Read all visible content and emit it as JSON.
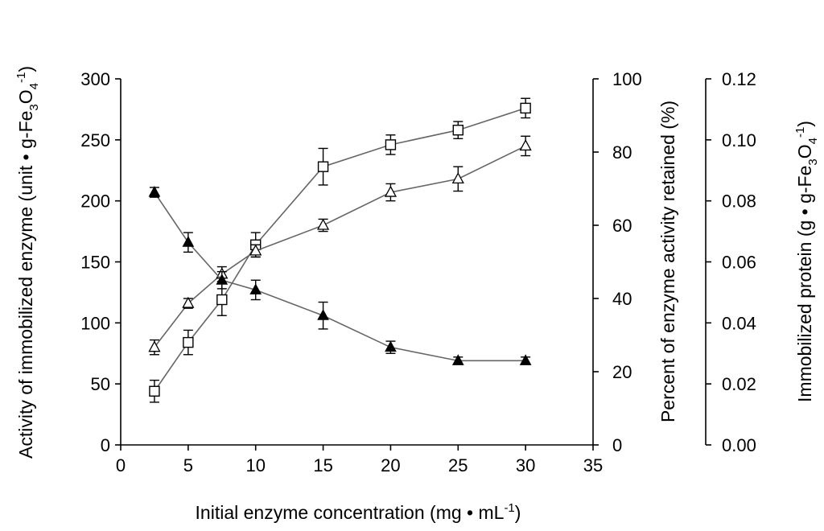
{
  "chart_data": {
    "type": "line",
    "x_axis": {
      "label": "Initial enzyme concentration (mg • mL",
      "label_sup": "-1",
      "label_end": ")",
      "range": [
        0,
        35
      ],
      "ticks": [
        "0",
        "5",
        "10",
        "15",
        "20",
        "25",
        "30",
        "35"
      ]
    },
    "y_axis_left": {
      "label": "Activity of immobilized enzyme (unit • g-Fe",
      "label_sub": "3",
      "label_mid": "O",
      "label_sub2": "4",
      "label_sup": "-1",
      "label_end": ")",
      "range": [
        0,
        300
      ],
      "ticks": [
        "0",
        "50",
        "100",
        "150",
        "200",
        "250",
        "300"
      ]
    },
    "y_axis_right1": {
      "label": "Percent of enzyme activity retained (%)",
      "range": [
        0,
        100
      ],
      "ticks": [
        "0",
        "20",
        "40",
        "60",
        "80",
        "100"
      ]
    },
    "y_axis_right2": {
      "label": "Immobilized protein (g • g-Fe",
      "label_sub": "3",
      "label_mid": "O",
      "label_sub2": "4",
      "label_sup": "-1",
      "label_end": ")",
      "range": [
        0.0,
        0.12
      ],
      "ticks": [
        "0.00",
        "0.02",
        "0.04",
        "0.06",
        "0.08",
        "0.10",
        "0.12"
      ]
    },
    "grid": false,
    "legend": "none",
    "series": [
      {
        "marker": "open-square",
        "axis": "left",
        "x": [
          2.5,
          5,
          7.5,
          10,
          15,
          20,
          25,
          30
        ],
        "y": [
          44,
          84,
          119,
          164,
          228,
          246,
          258,
          276
        ],
        "err": [
          9,
          10,
          13,
          10,
          15,
          8,
          7,
          8
        ]
      },
      {
        "marker": "open-triangle",
        "axis": "left",
        "x": [
          2.5,
          5,
          7.5,
          10,
          15,
          20,
          25,
          30
        ],
        "y": [
          80,
          116,
          140,
          159,
          180,
          207,
          218,
          245
        ],
        "err": [
          6,
          4,
          6,
          5,
          5,
          7,
          10,
          8
        ]
      },
      {
        "marker": "filled-triangle",
        "axis": "left",
        "x": [
          2.5,
          5,
          7.5,
          10,
          15,
          20,
          25,
          30
        ],
        "y": [
          207,
          166,
          135,
          127,
          106,
          80,
          69,
          69
        ],
        "err": [
          4,
          8,
          7,
          8,
          11,
          5,
          3,
          3
        ]
      }
    ]
  }
}
